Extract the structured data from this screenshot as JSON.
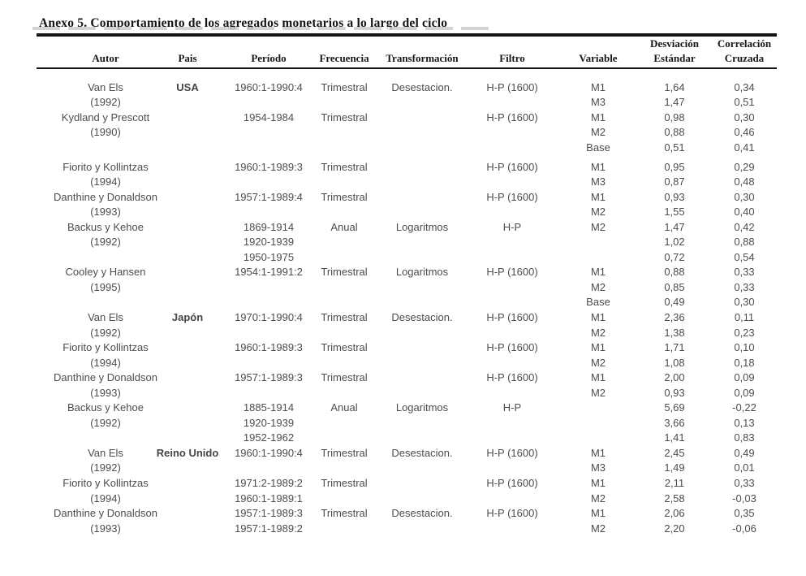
{
  "page": {
    "title": "Anexo 5. Comportamiento de los agregados monetarios a lo largo del ciclo"
  },
  "table": {
    "columns": [
      {
        "id": "autor",
        "label": "Autor"
      },
      {
        "id": "pais",
        "label": "Pais"
      },
      {
        "id": "periodo",
        "label": "Período"
      },
      {
        "id": "frecuencia",
        "label": "Frecuencia"
      },
      {
        "id": "transformacion",
        "label": "Transformación"
      },
      {
        "id": "filtro",
        "label": "Filtro"
      },
      {
        "id": "variable",
        "label": "Variable"
      },
      {
        "id": "desviacion",
        "label": "Desviación Estándar",
        "label_lines": [
          "Desviación",
          "Estándar"
        ]
      },
      {
        "id": "correlacion",
        "label": "Correlación Cruzada",
        "label_lines": [
          "Correlación",
          "Cruzada"
        ]
      }
    ],
    "rows": [
      {
        "autor": "Van Els",
        "pais": "USA",
        "periodo": "1960:1-1990:4",
        "frecuencia": "Trimestral",
        "transformacion": "Desestacion.",
        "filtro": "H-P (1600)",
        "variable": "M1",
        "desviacion": "1,64",
        "correlacion": "0,34"
      },
      {
        "autor": "(1992)",
        "variable": "M3",
        "desviacion": "1,47",
        "correlacion": "0,51"
      },
      {
        "autor": "Kydland y Prescott",
        "periodo": "1954-1984",
        "frecuencia": "Trimestral",
        "filtro": "H-P (1600)",
        "variable": "M1",
        "desviacion": "0,98",
        "correlacion": "0,30"
      },
      {
        "autor": "(1990)",
        "variable": "M2",
        "desviacion": "0,88",
        "correlacion": "0,46"
      },
      {
        "variable": "Base",
        "desviacion": "0,51",
        "correlacion": "0,41"
      },
      {
        "autor": "Fiorito y Kollintzas",
        "periodo": "1960:1-1989:3",
        "frecuencia": "Trimestral",
        "filtro": "H-P (1600)",
        "variable": "M1",
        "desviacion": "0,95",
        "correlacion": "0,29",
        "gap_before": true
      },
      {
        "autor": "(1994)",
        "variable": "M3",
        "desviacion": "0,87",
        "correlacion": "0,48"
      },
      {
        "autor": "Danthine y Donaldson",
        "periodo": "1957:1-1989:4",
        "frecuencia": "Trimestral",
        "filtro": "H-P (1600)",
        "variable": "M1",
        "desviacion": "0,93",
        "correlacion": "0,30"
      },
      {
        "autor": "(1993)",
        "variable": "M2",
        "desviacion": "1,55",
        "correlacion": "0,40"
      },
      {
        "autor": "Backus y Kehoe",
        "periodo": "1869-1914",
        "frecuencia": "Anual",
        "transformacion": "Logaritmos",
        "filtro": "H-P",
        "variable": "M2",
        "desviacion": "1,47",
        "correlacion": "0,42"
      },
      {
        "autor": "(1992)",
        "periodo": "1920-1939",
        "desviacion": "1,02",
        "correlacion": "0,88"
      },
      {
        "periodo": "1950-1975",
        "desviacion": "0,72",
        "correlacion": "0,54"
      },
      {
        "autor": "Cooley y Hansen",
        "periodo": "1954:1-1991:2",
        "frecuencia": "Trimestral",
        "transformacion": "Logaritmos",
        "filtro": "H-P (1600)",
        "variable": "M1",
        "desviacion": "0,88",
        "correlacion": "0,33"
      },
      {
        "autor": "(1995)",
        "variable": "M2",
        "desviacion": "0,85",
        "correlacion": "0,33"
      },
      {
        "variable": "Base",
        "desviacion": "0,49",
        "correlacion": "0,30"
      },
      {
        "autor": "Van Els",
        "pais": "Japón",
        "periodo": "1970:1-1990:4",
        "frecuencia": "Trimestral",
        "transformacion": "Desestacion.",
        "filtro": "H-P (1600)",
        "variable": "M1",
        "desviacion": "2,36",
        "correlacion": "0,11"
      },
      {
        "autor": "(1992)",
        "variable": "M2",
        "desviacion": "1,38",
        "correlacion": "0,23"
      },
      {
        "autor": "Fiorito y Kollintzas",
        "periodo": "1960:1-1989:3",
        "frecuencia": "Trimestral",
        "filtro": "H-P (1600)",
        "variable": "M1",
        "desviacion": "1,71",
        "correlacion": "0,10"
      },
      {
        "autor": "(1994)",
        "variable": "M2",
        "desviacion": "1,08",
        "correlacion": "0,18"
      },
      {
        "autor": "Danthine y Donaldson",
        "periodo": "1957:1-1989:3",
        "frecuencia": "Trimestral",
        "filtro": "H-P (1600)",
        "variable": "M1",
        "desviacion": "2,00",
        "correlacion": "0,09"
      },
      {
        "autor": "(1993)",
        "variable": "M2",
        "desviacion": "0,93",
        "correlacion": "0,09"
      },
      {
        "autor": "Backus y Kehoe",
        "periodo": "1885-1914",
        "frecuencia": "Anual",
        "transformacion": "Logaritmos",
        "filtro": "H-P",
        "desviacion": "5,69",
        "correlacion": "-0,22"
      },
      {
        "autor": "(1992)",
        "periodo": "1920-1939",
        "desviacion": "3,66",
        "correlacion": "0,13"
      },
      {
        "periodo": "1952-1962",
        "desviacion": "1,41",
        "correlacion": "0,83"
      },
      {
        "autor": "Van Els",
        "pais": "Reino Unido",
        "periodo": "1960:1-1990:4",
        "frecuencia": "Trimestral",
        "transformacion": "Desestacion.",
        "filtro": "H-P (1600)",
        "variable": "M1",
        "desviacion": "2,45",
        "correlacion": "0,49"
      },
      {
        "autor": "(1992)",
        "variable": "M3",
        "desviacion": "1,49",
        "correlacion": "0,01"
      },
      {
        "autor": "Fiorito y Kollintzas",
        "periodo": "1971:2-1989:2",
        "frecuencia": "Trimestral",
        "filtro": "H-P (1600)",
        "variable": "M1",
        "desviacion": "2,11",
        "correlacion": "0,33"
      },
      {
        "autor": "(1994)",
        "periodo": "1960:1-1989:1",
        "variable": "M2",
        "desviacion": "2,58",
        "correlacion": "-0,03"
      },
      {
        "autor": "Danthine y Donaldson",
        "periodo": "1957:1-1989:3",
        "frecuencia": "Trimestral",
        "transformacion": "Desestacion.",
        "filtro": "H-P (1600)",
        "variable": "M1",
        "desviacion": "2,06",
        "correlacion": "0,35"
      },
      {
        "autor": "(1993)",
        "periodo": "1957:1-1989:2",
        "variable": "M2",
        "desviacion": "2,20",
        "correlacion": "-0,06"
      }
    ]
  }
}
